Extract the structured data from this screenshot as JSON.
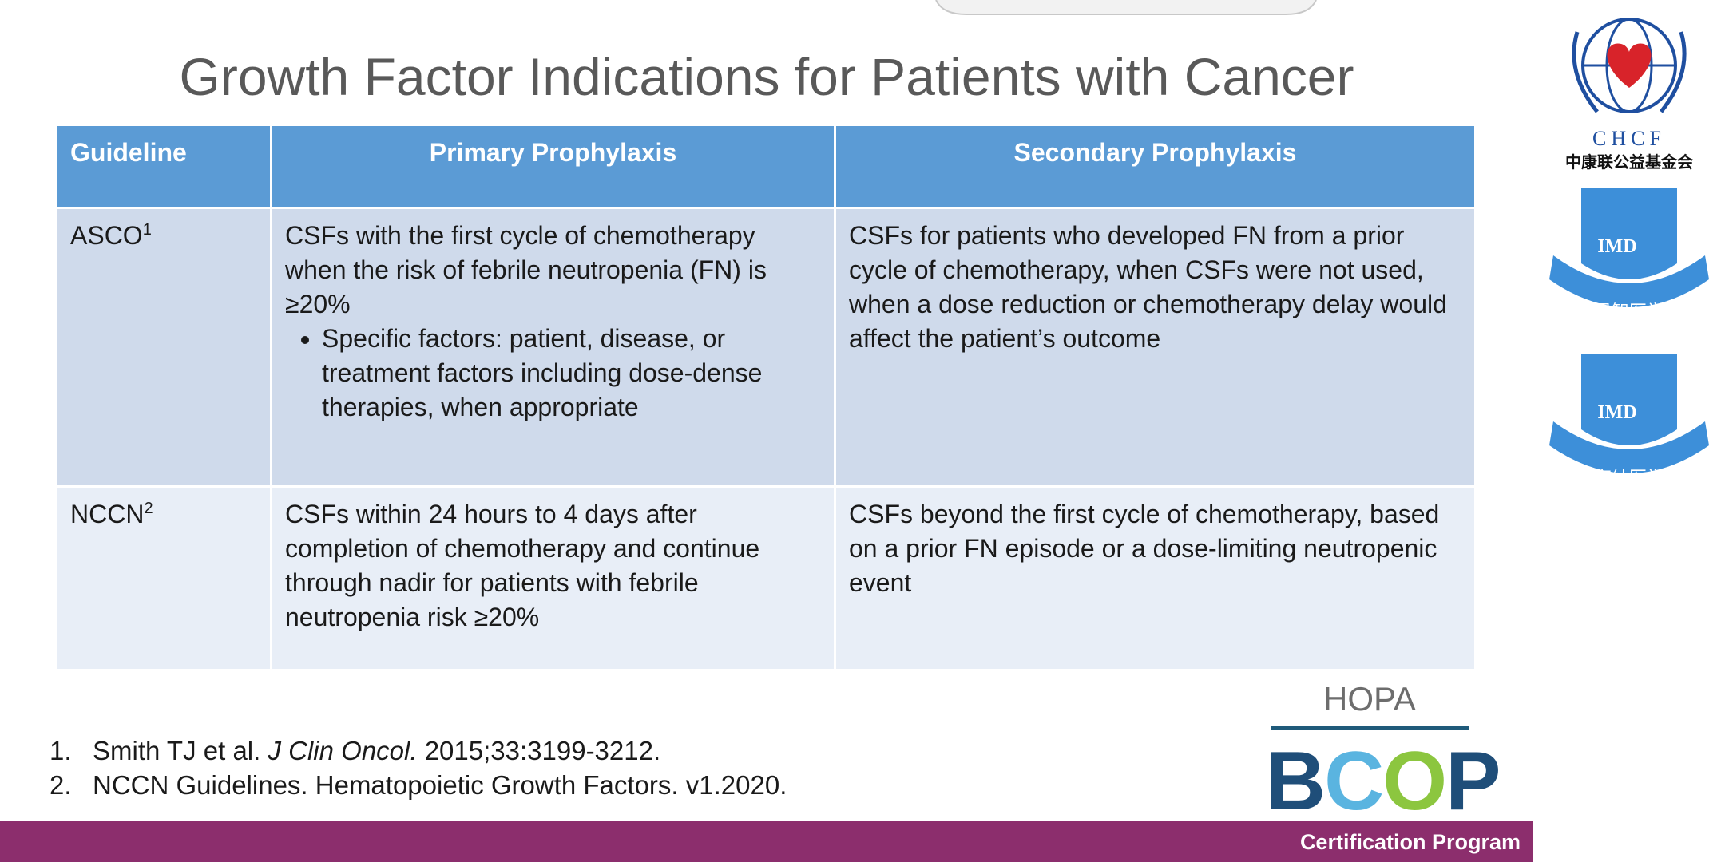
{
  "slide": {
    "title": "Growth Factor Indications for Patients with Cancer",
    "table": {
      "header": [
        "Guideline",
        "Primary Prophylaxis",
        "Secondary Prophylaxis"
      ],
      "rows": [
        {
          "guideline": "ASCO",
          "ref": "1",
          "primary": "CSFs with the first cycle of chemotherapy when the risk of febrile neutropenia (FN) is ≥20%",
          "primary_bullets": [
            "Specific factors: patient, disease, or treatment factors including dose-dense therapies, when appropriate"
          ],
          "secondary": "CSFs for patients who developed FN from a prior cycle of chemotherapy, when CSFs were not used, when a dose reduction or chemotherapy delay would affect the patient’s outcome"
        },
        {
          "guideline": "NCCN",
          "ref": "2",
          "primary": "CSFs within 24 hours to 4 days after completion of chemotherapy and continue through nadir for patients with febrile neutropenia risk ≥20%",
          "secondary": "CSFs beyond the first cycle of chemotherapy, based on a prior FN episode or a dose-limiting neutropenic event"
        }
      ]
    },
    "references": [
      {
        "number": "1.",
        "author": "Smith TJ et al.",
        "journal": "J Clin Oncol.",
        "citation": "2015;33:3199-3212."
      },
      {
        "number": "2.",
        "text": "NCCN Guidelines. Hematopoietic Growth Factors. v1.2020."
      }
    ],
    "branding": {
      "hopa": "HOPA",
      "bcop": [
        "B",
        "C",
        "O",
        "P"
      ],
      "program": "Certification Program"
    }
  },
  "sidebar": {
    "chcf": "CHCF",
    "chcf_name": "中康联公益基金会",
    "badges": [
      {
        "label": "IMD",
        "name": "君智医学"
      },
      {
        "label": "IMD",
        "name": "海纳医学"
      }
    ]
  }
}
